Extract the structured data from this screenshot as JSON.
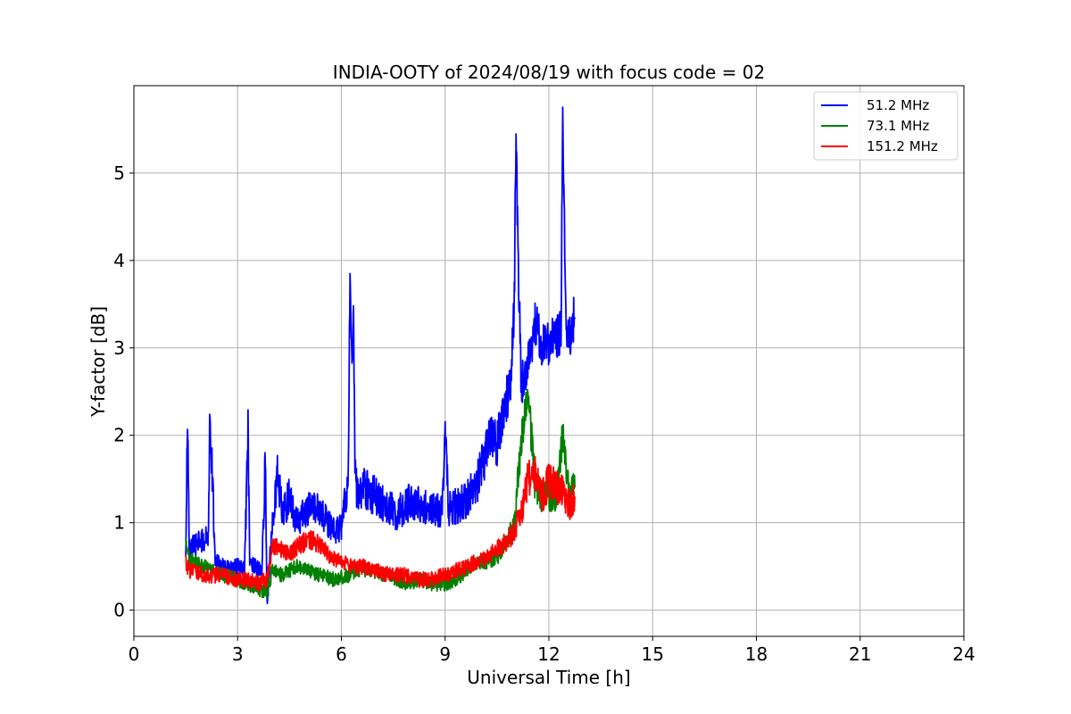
{
  "chart_data": {
    "type": "line",
    "title": "INDIA-OOTY of 2024/08/19 with focus code = 02",
    "xlabel": "Universal Time [h]",
    "ylabel": "Y-factor [dB]",
    "xlim": [
      0,
      24
    ],
    "ylim": [
      -0.3,
      6.0
    ],
    "xticks": [
      0,
      3,
      6,
      9,
      12,
      15,
      18,
      21,
      24
    ],
    "yticks": [
      0,
      1,
      2,
      3,
      4,
      5
    ],
    "grid": true,
    "legend_position": "top-right",
    "series": [
      {
        "name": " 51.2 MHz",
        "color": "#0000ff",
        "x": [
          1.5,
          1.55,
          1.6,
          1.8,
          2.0,
          2.15,
          2.2,
          2.35,
          2.5,
          2.8,
          3.0,
          3.2,
          3.3,
          3.35,
          3.5,
          3.7,
          3.8,
          3.85,
          4.0,
          4.15,
          4.3,
          4.5,
          4.7,
          5.0,
          5.2,
          5.5,
          5.8,
          6.0,
          6.2,
          6.25,
          6.3,
          6.35,
          6.4,
          6.5,
          6.7,
          7.0,
          7.3,
          7.6,
          8.0,
          8.3,
          8.6,
          8.9,
          9.0,
          9.1,
          9.4,
          9.7,
          9.9,
          10.1,
          10.3,
          10.5,
          10.7,
          10.9,
          11.0,
          11.05,
          11.1,
          11.2,
          11.4,
          11.6,
          11.8,
          12.0,
          12.2,
          12.35,
          12.4,
          12.5,
          12.6,
          12.7,
          12.75
        ],
        "y": [
          0.55,
          2.2,
          0.7,
          0.75,
          0.8,
          0.85,
          2.3,
          0.6,
          0.5,
          0.45,
          0.5,
          0.45,
          2.05,
          0.5,
          0.5,
          0.45,
          1.7,
          0.05,
          1.0,
          1.55,
          1.1,
          1.3,
          1.0,
          1.15,
          1.2,
          1.05,
          0.9,
          0.95,
          1.5,
          3.85,
          2.8,
          3.3,
          1.5,
          1.3,
          1.4,
          1.3,
          1.2,
          1.1,
          1.25,
          1.2,
          1.15,
          1.15,
          2.0,
          1.15,
          1.2,
          1.3,
          1.45,
          1.7,
          2.0,
          1.9,
          2.3,
          2.6,
          3.5,
          5.6,
          4.2,
          2.6,
          2.8,
          3.3,
          3.0,
          3.05,
          3.1,
          3.2,
          5.7,
          3.2,
          3.1,
          3.3,
          3.35
        ]
      },
      {
        "name": " 73.1 MHz",
        "color": "#008000",
        "x": [
          1.5,
          1.6,
          1.8,
          2.0,
          2.3,
          2.6,
          3.0,
          3.3,
          3.6,
          3.85,
          4.0,
          4.3,
          4.7,
          5.0,
          5.4,
          5.8,
          6.2,
          6.5,
          6.8,
          7.2,
          7.6,
          8.0,
          8.3,
          8.6,
          9.0,
          9.3,
          9.6,
          9.9,
          10.2,
          10.5,
          10.8,
          11.0,
          11.2,
          11.4,
          11.6,
          11.8,
          12.0,
          12.2,
          12.4,
          12.6,
          12.75
        ],
        "y": [
          0.75,
          0.6,
          0.55,
          0.5,
          0.45,
          0.4,
          0.35,
          0.3,
          0.25,
          0.2,
          0.45,
          0.4,
          0.5,
          0.45,
          0.4,
          0.35,
          0.4,
          0.45,
          0.45,
          0.4,
          0.35,
          0.3,
          0.35,
          0.3,
          0.3,
          0.35,
          0.45,
          0.55,
          0.55,
          0.6,
          0.8,
          1.0,
          1.9,
          2.5,
          1.4,
          1.3,
          1.3,
          1.25,
          2.0,
          1.3,
          1.4
        ]
      },
      {
        "name": "151.2 MHz",
        "color": "#ff0000",
        "x": [
          1.5,
          1.6,
          1.8,
          2.0,
          2.3,
          2.6,
          3.0,
          3.3,
          3.6,
          3.85,
          4.0,
          4.2,
          4.5,
          4.8,
          5.1,
          5.4,
          5.7,
          6.0,
          6.3,
          6.6,
          7.0,
          7.4,
          7.8,
          8.2,
          8.6,
          9.0,
          9.3,
          9.6,
          9.9,
          10.2,
          10.5,
          10.8,
          11.0,
          11.2,
          11.4,
          11.6,
          11.8,
          12.0,
          12.2,
          12.4,
          12.6,
          12.75
        ],
        "y": [
          0.55,
          0.45,
          0.45,
          0.4,
          0.4,
          0.4,
          0.35,
          0.35,
          0.3,
          0.35,
          0.75,
          0.7,
          0.65,
          0.75,
          0.8,
          0.75,
          0.6,
          0.55,
          0.5,
          0.5,
          0.45,
          0.4,
          0.4,
          0.35,
          0.35,
          0.4,
          0.45,
          0.5,
          0.55,
          0.6,
          0.7,
          0.8,
          0.9,
          1.1,
          1.5,
          1.55,
          1.3,
          1.5,
          1.4,
          1.35,
          1.2,
          1.3
        ]
      }
    ]
  }
}
